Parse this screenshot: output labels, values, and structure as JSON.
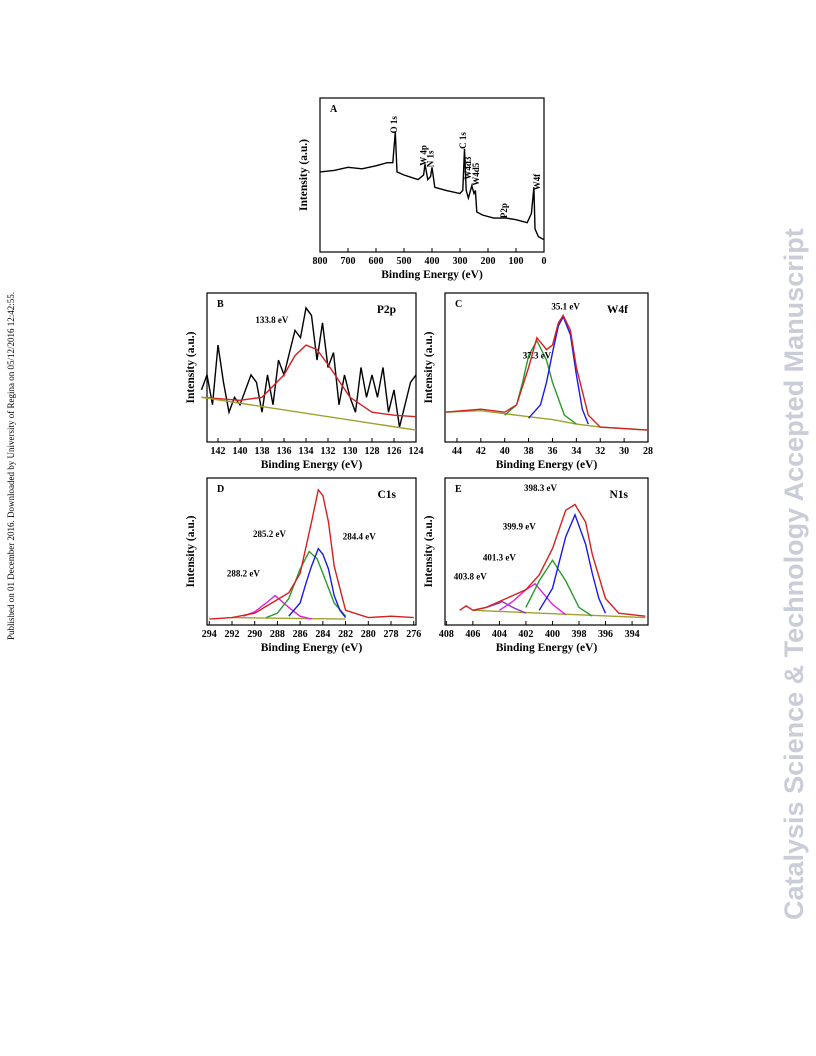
{
  "sidebar": "Published on 01 December 2016. Downloaded by University of Regina on 05/12/2016 12:42:55.",
  "watermark": "Catalysis Science & Technology Accepted Manuscript",
  "chart_data": [
    {
      "type": "line",
      "label": "A",
      "xlabel": "Binding Energy (eV)",
      "ylabel": "Intensity (a.u.)",
      "xlim": [
        800,
        0
      ],
      "ylim": [
        0,
        100
      ],
      "xticks": [
        800,
        700,
        600,
        500,
        400,
        300,
        200,
        100,
        0
      ],
      "annotation_rotation": -90,
      "series": [
        {
          "color": "#000000",
          "x": [
            800,
            750,
            700,
            650,
            600,
            560,
            540,
            531,
            525,
            500,
            450,
            430,
            425,
            415,
            405,
            400,
            390,
            350,
            300,
            290,
            284,
            278,
            270,
            258,
            250,
            245,
            240,
            220,
            180,
            135,
            100,
            60,
            45,
            36,
            32,
            20,
            0
          ],
          "values": [
            52,
            53,
            55,
            54,
            56,
            58,
            58,
            78,
            52,
            50,
            47,
            50,
            57,
            47,
            49,
            55,
            42,
            40,
            38,
            40,
            67,
            40,
            35,
            43,
            38,
            40,
            26,
            24,
            22,
            22,
            21,
            19,
            25,
            42,
            15,
            10,
            8
          ]
        }
      ],
      "annotations": [
        {
          "text": "O 1s",
          "x": 535,
          "y": 77
        },
        {
          "text": "W 4p",
          "x": 430,
          "y": 56
        },
        {
          "text": "N 1s",
          "x": 405,
          "y": 55
        },
        {
          "text": "C 1s",
          "x": 289,
          "y": 67
        },
        {
          "text": "W4d3",
          "x": 271,
          "y": 47
        },
        {
          "text": "W4d5",
          "x": 243,
          "y": 43
        },
        {
          "text": "P2p",
          "x": 143,
          "y": 22
        },
        {
          "text": "W4f",
          "x": 25,
          "y": 40
        }
      ]
    },
    {
      "type": "line",
      "label": "B",
      "title": "P2p",
      "xlabel": "Binding Energy (eV)",
      "ylabel": "Intensity (a.u.)",
      "xlim": [
        143,
        124
      ],
      "ylim": [
        0,
        100
      ],
      "xticks": [
        142,
        140,
        138,
        136,
        134,
        132,
        130,
        128,
        126,
        124
      ],
      "series": [
        {
          "color": "#000000",
          "x": [
            143.5,
            143,
            142.5,
            142,
            141.5,
            141,
            140.5,
            140,
            139,
            138.5,
            138,
            137.5,
            137,
            136.5,
            136,
            135.5,
            135,
            134.5,
            134,
            133.5,
            133,
            132.5,
            132,
            131.5,
            131,
            130.5,
            130,
            129.5,
            129,
            128.5,
            128,
            127.5,
            127,
            126.5,
            126,
            125.5,
            125,
            124.5,
            124
          ],
          "values": [
            35,
            45,
            25,
            65,
            40,
            20,
            30,
            25,
            45,
            40,
            20,
            45,
            25,
            55,
            45,
            60,
            75,
            70,
            90,
            85,
            55,
            80,
            50,
            60,
            25,
            45,
            30,
            20,
            50,
            30,
            45,
            30,
            50,
            20,
            35,
            10,
            25,
            40,
            45
          ]
        },
        {
          "color": "#d62020",
          "x": [
            143.5,
            140,
            138,
            136,
            135,
            134,
            133,
            132,
            130,
            128,
            126,
            124
          ],
          "values": [
            30,
            28,
            30,
            45,
            58,
            65,
            62,
            52,
            30,
            20,
            18,
            17
          ]
        },
        {
          "color": "#a0a030",
          "x": [
            143.5,
            124
          ],
          "values": [
            30,
            8
          ]
        }
      ],
      "annotations": [
        {
          "text": "133.8 eV",
          "x": 137.1,
          "y": 80
        }
      ]
    },
    {
      "type": "line",
      "label": "C",
      "title": "W4f",
      "xlabel": "Binding Energy (eV)",
      "ylabel": "Intensity (a.u.)",
      "xlim": [
        45,
        28
      ],
      "ylim": [
        0,
        100
      ],
      "xticks": [
        44,
        42,
        40,
        38,
        36,
        34,
        32,
        30,
        28
      ],
      "series": [
        {
          "color": "#a0a030",
          "x": [
            45,
            42,
            40,
            38,
            36,
            34,
            32,
            30,
            28
          ],
          "values": [
            20,
            21,
            19,
            17,
            15,
            12,
            10,
            9,
            8
          ]
        },
        {
          "color": "#2a9a2a",
          "x": [
            40,
            39,
            38.5,
            38,
            37.3,
            36.5,
            36,
            35,
            34
          ],
          "values": [
            18,
            25,
            40,
            58,
            68,
            55,
            40,
            18,
            12
          ]
        },
        {
          "color": "#1a1ae6",
          "x": [
            38,
            37,
            36.5,
            36,
            35.5,
            35.1,
            34.5,
            34,
            33.5,
            33
          ],
          "values": [
            16,
            25,
            40,
            60,
            78,
            84,
            72,
            45,
            22,
            12
          ]
        },
        {
          "color": "#d62020",
          "x": [
            45,
            42,
            40,
            39,
            38,
            37.3,
            36.5,
            36,
            35.5,
            35.1,
            34.5,
            34,
            33,
            32,
            30,
            28
          ],
          "values": [
            20,
            22,
            20,
            25,
            50,
            70,
            62,
            65,
            80,
            85,
            75,
            50,
            18,
            10,
            9,
            8
          ]
        }
      ],
      "annotations": [
        {
          "text": "35.1 eV",
          "x": 34.9,
          "y": 89
        },
        {
          "text": "37.3 eV",
          "x": 37.3,
          "y": 56
        }
      ]
    },
    {
      "type": "line",
      "label": "D",
      "title": "C1s",
      "xlabel": "Binding Energy (eV)",
      "ylabel": "Intensity (a.u.)",
      "xlim": [
        294.2,
        275.8
      ],
      "ylim": [
        0,
        100
      ],
      "xticks": [
        294,
        292,
        290,
        288,
        286,
        284,
        282,
        280,
        278,
        276
      ],
      "series": [
        {
          "color": "#a0a030",
          "x": [
            292,
            282
          ],
          "values": [
            5,
            4
          ]
        },
        {
          "color": "#e020e0",
          "x": [
            291,
            290,
            289,
            288.2,
            287,
            286,
            285
          ],
          "values": [
            6,
            9,
            15,
            20,
            12,
            6,
            4
          ]
        },
        {
          "color": "#2a9a2a",
          "x": [
            289,
            288,
            287,
            286,
            285.2,
            284.5,
            284,
            283,
            282
          ],
          "values": [
            5,
            8,
            18,
            38,
            50,
            45,
            35,
            15,
            6
          ]
        },
        {
          "color": "#1a1ae6",
          "x": [
            287,
            286,
            285.5,
            285,
            284.4,
            284,
            283.5,
            283,
            282.5,
            282
          ],
          "values": [
            6,
            15,
            28,
            40,
            52,
            48,
            38,
            20,
            10,
            5
          ]
        },
        {
          "color": "#d62020",
          "x": [
            294,
            292,
            290,
            288.5,
            287,
            286,
            285,
            284.4,
            284,
            283.5,
            283,
            282,
            280,
            278,
            276
          ],
          "values": [
            4,
            5,
            8,
            15,
            22,
            35,
            70,
            92,
            88,
            70,
            40,
            10,
            5,
            6,
            5
          ]
        }
      ],
      "annotations": [
        {
          "text": "285.2 eV",
          "x": 288.7,
          "y": 60
        },
        {
          "text": "284.4 eV",
          "x": 280.8,
          "y": 58
        },
        {
          "text": "288.2 eV",
          "x": 291.0,
          "y": 33
        }
      ]
    },
    {
      "type": "line",
      "label": "E",
      "title": "N1s",
      "xlabel": "Binding Energy (eV)",
      "ylabel": "Intensity (a.u.)",
      "xlim": [
        408.1,
        392.8
      ],
      "ylim": [
        0,
        100
      ],
      "xticks": [
        408,
        406,
        404,
        402,
        400,
        398,
        396,
        394
      ],
      "series": [
        {
          "color": "#a0a030",
          "x": [
            406,
            393
          ],
          "values": [
            10,
            5
          ]
        },
        {
          "color": "#8a3ac0",
          "x": [
            406,
            405,
            404,
            403.8,
            403,
            402
          ],
          "values": [
            10,
            12,
            15,
            16,
            12,
            8
          ]
        },
        {
          "color": "#e020e0",
          "x": [
            404,
            403,
            402,
            401.3,
            400,
            399
          ],
          "values": [
            10,
            16,
            24,
            28,
            14,
            7
          ]
        },
        {
          "color": "#2a9a2a",
          "x": [
            402,
            401,
            400,
            399,
            398,
            397
          ],
          "values": [
            12,
            30,
            44,
            30,
            12,
            6
          ]
        },
        {
          "color": "#1a1ae6",
          "x": [
            401,
            400,
            399,
            398.3,
            397.5,
            397,
            396.5,
            396
          ],
          "values": [
            10,
            25,
            60,
            75,
            55,
            35,
            18,
            8
          ]
        },
        {
          "color": "#d62020",
          "x": [
            407,
            406.5,
            406,
            405,
            404,
            403,
            402,
            401,
            400,
            399,
            398.3,
            397.5,
            397,
            396,
            395,
            394,
            393
          ],
          "values": [
            10,
            13,
            10,
            12,
            16,
            20,
            24,
            34,
            52,
            78,
            82,
            70,
            48,
            18,
            8,
            7,
            6
          ]
        }
      ],
      "annotations": [
        {
          "text": "398.3 eV",
          "x": 400.9,
          "y": 91
        },
        {
          "text": "399.9 eV",
          "x": 402.5,
          "y": 65
        },
        {
          "text": "401.3 eV",
          "x": 404.0,
          "y": 44
        },
        {
          "text": "403.8 eV",
          "x": 406.2,
          "y": 31
        }
      ]
    }
  ]
}
